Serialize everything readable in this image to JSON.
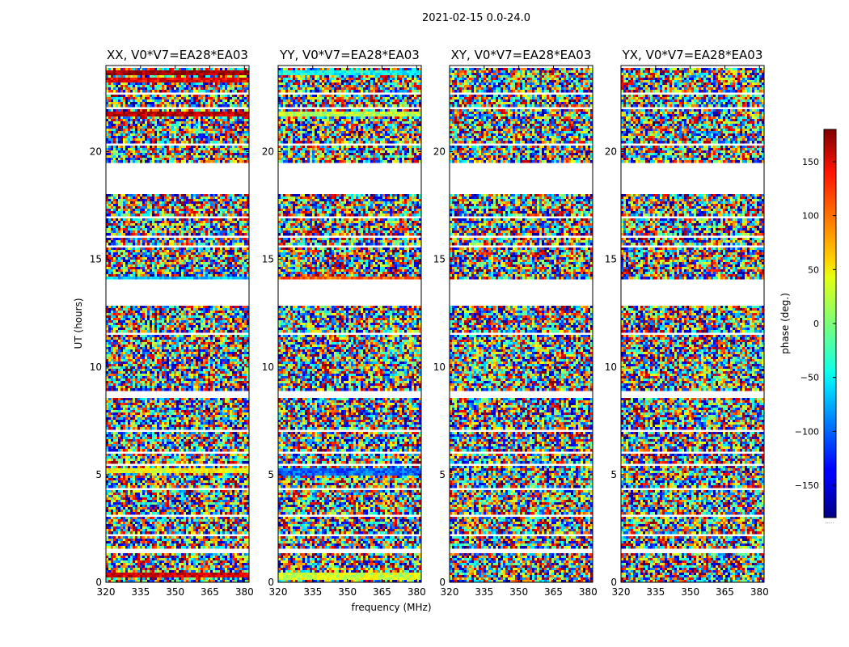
{
  "chart_data": {
    "type": "heatmap",
    "title": "2021-02-15 0.0-24.0",
    "xlabel": "frequency (MHz)",
    "ylabel": "UT (hours)",
    "xlim": [
      320,
      382
    ],
    "ylim": [
      0,
      24
    ],
    "x_ticks": [
      320,
      335,
      350,
      365,
      380
    ],
    "y_ticks": [
      0,
      5,
      10,
      15,
      20
    ],
    "colorbar": {
      "label": "phase (deg.)",
      "range": [
        -180,
        180
      ],
      "ticks": [
        150,
        100,
        50,
        0,
        -50,
        -100,
        -150
      ],
      "tick_labels": [
        "150",
        "100",
        "50",
        "0",
        "−50",
        "−100",
        "−150"
      ],
      "colormap": "jet"
    },
    "panels": [
      {
        "title": "XX, V0*V7=EA28*EA03",
        "bands": [
          {
            "t0": 0.2,
            "t1": 0.5,
            "phase": 150
          },
          {
            "t0": 5.1,
            "t1": 5.3,
            "phase": 40
          },
          {
            "t0": 14.0,
            "t1": 14.2,
            "phase": -70
          },
          {
            "t0": 21.6,
            "t1": 21.9,
            "phase": 160
          },
          {
            "t0": 23.2,
            "t1": 23.4,
            "phase": 140
          },
          {
            "t0": 23.6,
            "t1": 23.8,
            "phase": 170
          }
        ]
      },
      {
        "title": "YY, V0*V7=EA28*EA03",
        "bands": [
          {
            "t0": 0.1,
            "t1": 0.5,
            "phase": 30
          },
          {
            "t0": 5.0,
            "t1": 5.3,
            "phase": -100
          },
          {
            "t0": 14.0,
            "t1": 14.2,
            "phase": 100
          },
          {
            "t0": 21.6,
            "t1": 21.9,
            "phase": 20
          },
          {
            "t0": 23.6,
            "t1": 23.8,
            "phase": -40
          }
        ]
      },
      {
        "title": "XY, V0*V7=EA28*EA03",
        "bands": []
      },
      {
        "title": "YX, V0*V7=EA28*EA03",
        "bands": []
      }
    ],
    "flagged_gaps_hours": [
      [
        1.4,
        1.55
      ],
      [
        2.15,
        2.25
      ],
      [
        3.0,
        3.2
      ],
      [
        3.55,
        3.62
      ],
      [
        4.3,
        4.37
      ],
      [
        5.4,
        5.5
      ],
      [
        6.0,
        6.05
      ],
      [
        6.95,
        7.05
      ],
      [
        8.6,
        8.85
      ],
      [
        11.5,
        11.6
      ],
      [
        12.85,
        14.05
      ],
      [
        14.95,
        15.0
      ],
      [
        15.6,
        15.65
      ],
      [
        16.0,
        16.1
      ],
      [
        16.9,
        17.0
      ],
      [
        18.05,
        19.45
      ],
      [
        20.3,
        20.4
      ],
      [
        21.95,
        22.05
      ],
      [
        22.65,
        22.75
      ],
      [
        23.9,
        24.0
      ]
    ]
  }
}
